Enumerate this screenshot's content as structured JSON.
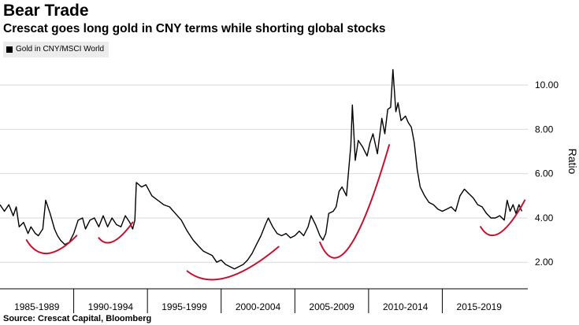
{
  "title": "Bear Trade",
  "subtitle": "Crescat goes long gold in CNY terms while shorting global stocks",
  "source": "Source: Crescat Capital, Bloomberg",
  "colors": {
    "series": "#000000",
    "annotation": "#c8102e",
    "gridline": "#d9d9d9",
    "legend_bg": "#ececec"
  },
  "chart_data": {
    "type": "line",
    "xlabel": "",
    "ylabel": "Ratio",
    "legend": "top-left",
    "grid": "horizontal",
    "xlim": [
      1985.0,
      2020.8
    ],
    "ylim": [
      0.8,
      11.0
    ],
    "x_tick_labels": [
      {
        "label": "1985-1989",
        "center": 1987.5
      },
      {
        "label": "1990-1994",
        "center": 1992.5
      },
      {
        "label": "1995-1999",
        "center": 1997.5
      },
      {
        "label": "2000-2004",
        "center": 2002.5
      },
      {
        "label": "2005-2009",
        "center": 2007.5
      },
      {
        "label": "2010-2014",
        "center": 2012.5
      },
      {
        "label": "2015-2019",
        "center": 2017.5
      }
    ],
    "x_separators": [
      1990,
      1995,
      2000,
      2005,
      2010,
      2015
    ],
    "y_ticks": [
      {
        "value": 2,
        "label": "2.00"
      },
      {
        "value": 4,
        "label": "4.00"
      },
      {
        "value": 6,
        "label": "6.00"
      },
      {
        "value": 8,
        "label": "8.00"
      },
      {
        "value": 10,
        "label": "10.00"
      }
    ],
    "series": [
      {
        "name": "Gold in CNY/MSCI World",
        "points": [
          [
            1985.0,
            4.6
          ],
          [
            1985.3,
            4.3
          ],
          [
            1985.6,
            4.6
          ],
          [
            1985.9,
            4.1
          ],
          [
            1986.1,
            4.5
          ],
          [
            1986.3,
            3.6
          ],
          [
            1986.6,
            3.8
          ],
          [
            1986.9,
            3.3
          ],
          [
            1987.1,
            3.6
          ],
          [
            1987.4,
            3.3
          ],
          [
            1987.6,
            3.2
          ],
          [
            1987.9,
            3.5
          ],
          [
            1988.1,
            4.8
          ],
          [
            1988.4,
            4.2
          ],
          [
            1988.7,
            3.5
          ],
          [
            1988.9,
            3.2
          ],
          [
            1989.1,
            3.0
          ],
          [
            1989.4,
            2.8
          ],
          [
            1989.7,
            2.9
          ],
          [
            1990.0,
            3.3
          ],
          [
            1990.3,
            3.9
          ],
          [
            1990.6,
            4.0
          ],
          [
            1990.8,
            3.5
          ],
          [
            1991.1,
            3.9
          ],
          [
            1991.4,
            4.0
          ],
          [
            1991.7,
            3.6
          ],
          [
            1992.0,
            4.1
          ],
          [
            1992.3,
            3.6
          ],
          [
            1992.6,
            4.0
          ],
          [
            1992.9,
            3.7
          ],
          [
            1993.2,
            3.6
          ],
          [
            1993.5,
            4.1
          ],
          [
            1993.8,
            3.8
          ],
          [
            1994.0,
            3.5
          ],
          [
            1994.15,
            3.9
          ],
          [
            1994.25,
            5.6
          ],
          [
            1994.6,
            5.4
          ],
          [
            1994.9,
            5.5
          ],
          [
            1995.3,
            5.0
          ],
          [
            1995.7,
            4.8
          ],
          [
            1996.1,
            4.6
          ],
          [
            1996.5,
            4.5
          ],
          [
            1996.9,
            4.2
          ],
          [
            1997.3,
            3.9
          ],
          [
            1997.7,
            3.4
          ],
          [
            1998.1,
            3.0
          ],
          [
            1998.5,
            2.7
          ],
          [
            1998.8,
            2.5
          ],
          [
            1999.1,
            2.4
          ],
          [
            1999.4,
            2.3
          ],
          [
            1999.7,
            2.0
          ],
          [
            2000.0,
            2.1
          ],
          [
            2000.3,
            1.9
          ],
          [
            2000.6,
            1.8
          ],
          [
            2000.9,
            1.7
          ],
          [
            2001.2,
            1.8
          ],
          [
            2001.5,
            1.9
          ],
          [
            2001.8,
            2.1
          ],
          [
            2002.1,
            2.4
          ],
          [
            2002.4,
            2.8
          ],
          [
            2002.7,
            3.2
          ],
          [
            2003.0,
            3.7
          ],
          [
            2003.2,
            4.0
          ],
          [
            2003.5,
            3.6
          ],
          [
            2003.8,
            3.3
          ],
          [
            2004.1,
            3.2
          ],
          [
            2004.4,
            3.3
          ],
          [
            2004.7,
            3.1
          ],
          [
            2005.0,
            3.2
          ],
          [
            2005.3,
            3.4
          ],
          [
            2005.6,
            3.2
          ],
          [
            2005.9,
            3.6
          ],
          [
            2006.1,
            4.1
          ],
          [
            2006.4,
            3.7
          ],
          [
            2006.7,
            3.2
          ],
          [
            2006.9,
            3.0
          ],
          [
            2007.1,
            3.3
          ],
          [
            2007.3,
            4.2
          ],
          [
            2007.6,
            4.3
          ],
          [
            2007.8,
            4.5
          ],
          [
            2008.0,
            5.2
          ],
          [
            2008.2,
            5.4
          ],
          [
            2008.5,
            5.0
          ],
          [
            2008.8,
            7.3
          ],
          [
            2008.9,
            9.1
          ],
          [
            2009.1,
            6.6
          ],
          [
            2009.3,
            7.5
          ],
          [
            2009.6,
            7.2
          ],
          [
            2009.9,
            6.8
          ],
          [
            2010.1,
            7.4
          ],
          [
            2010.3,
            7.8
          ],
          [
            2010.6,
            6.9
          ],
          [
            2010.9,
            8.5
          ],
          [
            2011.1,
            7.8
          ],
          [
            2011.3,
            8.9
          ],
          [
            2011.5,
            9.0
          ],
          [
            2011.65,
            10.7
          ],
          [
            2011.85,
            8.8
          ],
          [
            2012.0,
            9.2
          ],
          [
            2012.2,
            8.4
          ],
          [
            2012.5,
            8.6
          ],
          [
            2012.7,
            8.3
          ],
          [
            2012.9,
            8.1
          ],
          [
            2013.1,
            7.4
          ],
          [
            2013.3,
            6.2
          ],
          [
            2013.5,
            5.4
          ],
          [
            2013.8,
            5.0
          ],
          [
            2014.1,
            4.7
          ],
          [
            2014.4,
            4.6
          ],
          [
            2014.7,
            4.4
          ],
          [
            2015.0,
            4.3
          ],
          [
            2015.3,
            4.4
          ],
          [
            2015.6,
            4.5
          ],
          [
            2015.9,
            4.3
          ],
          [
            2016.2,
            5.0
          ],
          [
            2016.5,
            5.3
          ],
          [
            2016.8,
            5.1
          ],
          [
            2017.1,
            4.9
          ],
          [
            2017.4,
            4.6
          ],
          [
            2017.7,
            4.5
          ],
          [
            2018.0,
            4.2
          ],
          [
            2018.3,
            4.0
          ],
          [
            2018.6,
            4.0
          ],
          [
            2018.9,
            4.1
          ],
          [
            2019.2,
            3.9
          ],
          [
            2019.4,
            4.8
          ],
          [
            2019.6,
            4.3
          ],
          [
            2019.8,
            4.6
          ],
          [
            2020.0,
            4.2
          ],
          [
            2020.2,
            4.6
          ],
          [
            2020.4,
            4.3
          ]
        ]
      }
    ],
    "annotation_arcs": [
      {
        "x_start": 1986.8,
        "x_end": 1990.2,
        "y_start": 3.0,
        "y_end": 3.2,
        "y_bottom": 2.0
      },
      {
        "x_start": 1991.7,
        "x_end": 1994.0,
        "y_start": 3.1,
        "y_end": 3.8,
        "y_bottom": 2.7
      },
      {
        "x_start": 1997.7,
        "x_end": 2003.9,
        "y_start": 1.6,
        "y_end": 2.7,
        "y_bottom": 0.9
      },
      {
        "x_start": 2006.7,
        "x_end": 2011.4,
        "y_start": 2.9,
        "y_end": 7.3,
        "y_bottom": 1.7
      },
      {
        "x_start": 2017.6,
        "x_end": 2020.6,
        "y_start": 3.6,
        "y_end": 4.8,
        "y_bottom": 2.9
      }
    ]
  }
}
